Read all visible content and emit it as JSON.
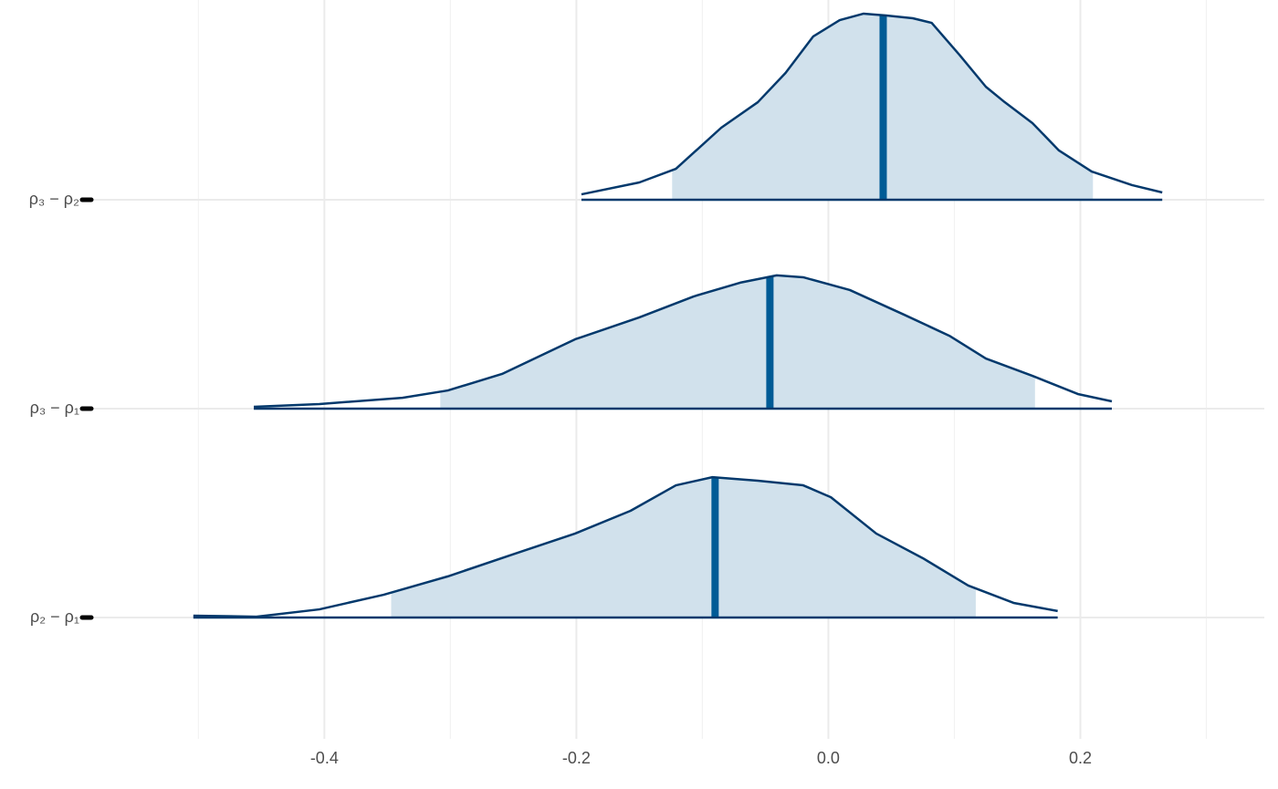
{
  "chart_data": {
    "type": "ridgeline",
    "categories": [
      "ρ₃ − ρ₂",
      "ρ₃ − ρ₁",
      "ρ₂ − ρ₁"
    ],
    "series": [
      {
        "x": [
          -0.196,
          -0.15,
          -0.121,
          -0.085,
          -0.056,
          -0.034,
          -0.012,
          0.009,
          0.028,
          0.046,
          0.067,
          0.082,
          0.104,
          0.125,
          0.14,
          0.162,
          0.183,
          0.209,
          0.241,
          0.265
        ],
        "density": [
          0.026,
          0.083,
          0.148,
          0.345,
          0.467,
          0.607,
          0.782,
          0.86,
          0.891,
          0.882,
          0.869,
          0.847,
          0.694,
          0.541,
          0.467,
          0.367,
          0.236,
          0.135,
          0.07,
          0.035
        ],
        "interval": [
          -0.124,
          0.21
        ],
        "median": 0.0435
      },
      {
        "x": [
          -0.456,
          -0.404,
          -0.338,
          -0.302,
          -0.259,
          -0.201,
          -0.15,
          -0.107,
          -0.07,
          -0.041,
          -0.02,
          0.017,
          0.06,
          0.096,
          0.125,
          0.162,
          0.198,
          0.225
        ],
        "density": [
          0.009,
          0.022,
          0.052,
          0.087,
          0.166,
          0.332,
          0.437,
          0.537,
          0.603,
          0.638,
          0.629,
          0.568,
          0.45,
          0.349,
          0.24,
          0.157,
          0.07,
          0.035
        ],
        "interval": [
          -0.308,
          0.164
        ],
        "median": -0.0464
      },
      {
        "x": [
          -0.504,
          -0.454,
          -0.404,
          -0.353,
          -0.302,
          -0.251,
          -0.201,
          -0.157,
          -0.121,
          -0.092,
          -0.056,
          -0.02,
          0.002,
          0.038,
          0.075,
          0.111,
          0.147,
          0.182
        ],
        "density": [
          0.009,
          0.004,
          0.039,
          0.109,
          0.197,
          0.301,
          0.402,
          0.511,
          0.633,
          0.672,
          0.655,
          0.633,
          0.576,
          0.402,
          0.284,
          0.153,
          0.07,
          0.031
        ],
        "interval": [
          -0.347,
          0.117
        ],
        "median": -0.0899
      }
    ],
    "xlim": [
      -0.585,
      0.346
    ],
    "xticks": [
      -0.4,
      -0.2,
      {
        "value": 0,
        "label": "0.0"
      },
      0.2
    ],
    "minor_xticks": [
      -0.5,
      -0.3,
      -0.1,
      0.1,
      0.3
    ],
    "grid": true,
    "fill_color": "#d1e1ec",
    "line_color": "#03396c",
    "median_color": "#005b96"
  }
}
